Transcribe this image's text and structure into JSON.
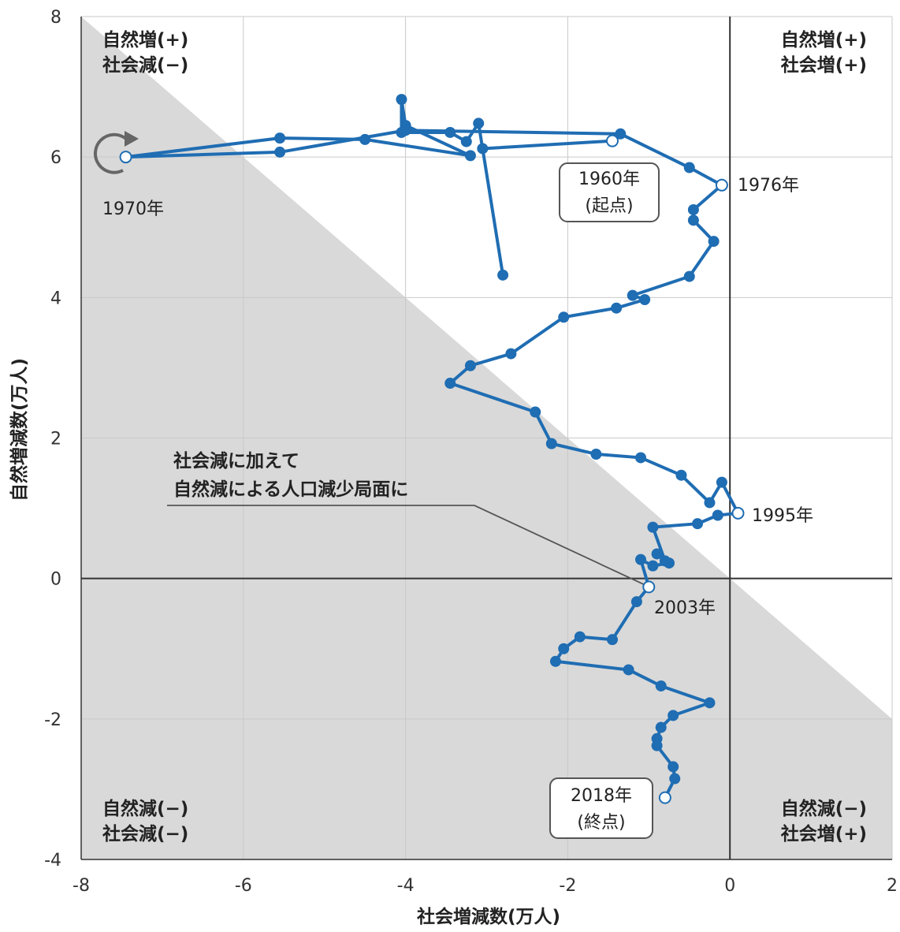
{
  "chart_data": {
    "type": "line",
    "xlabel": "社会増減数(万人)",
    "ylabel": "自然増減数(万人)",
    "xlim": [
      -8,
      2
    ],
    "ylim": [
      -4,
      8
    ],
    "x_ticks": [
      "-8",
      "-6",
      "-4",
      "-2",
      "0",
      "2"
    ],
    "y_ticks": [
      "8",
      "6",
      "4",
      "2",
      "0",
      "-2",
      "-4"
    ],
    "grid": true,
    "shaded_region": "natural + social < 0",
    "line_color": "#1f6db3",
    "shade_color": "#d9d9d9",
    "quadrant_labels": {
      "top_left": [
        "自然増(+)",
        "社会減(−)"
      ],
      "top_right": [
        "自然増(+)",
        "社会増(+)"
      ],
      "bottom_left": [
        "自然減(−)",
        "社会減(−)"
      ],
      "bottom_right": [
        "自然減(−)",
        "社会増(+)"
      ]
    },
    "point_labels": {
      "start": [
        "1960年",
        "(起点)"
      ],
      "y1970": "1970年",
      "y1976": "1976年",
      "y1995": "1995年",
      "y2003": "2003年",
      "end": [
        "2018年",
        "(終点)"
      ]
    },
    "callout": [
      "社会減に加えて",
      "自然減による人口減少局面に"
    ],
    "points": [
      [
        -1.45,
        6.23
      ],
      [
        -3.05,
        6.12
      ],
      [
        -2.8,
        4.32
      ],
      [
        -3.1,
        6.48
      ],
      [
        -3.25,
        6.22
      ],
      [
        -3.45,
        6.35
      ],
      [
        -4.05,
        6.35
      ],
      [
        -4.05,
        6.82
      ],
      [
        -4.0,
        6.45
      ],
      [
        -3.2,
        6.02
      ],
      [
        -4.5,
        6.25
      ],
      [
        -5.55,
        6.27
      ],
      [
        -7.45,
        6.0
      ],
      [
        -5.55,
        6.07
      ],
      [
        -4.0,
        6.38
      ],
      [
        -1.35,
        6.33
      ],
      [
        -0.5,
        5.85
      ],
      [
        -0.1,
        5.6
      ],
      [
        -0.45,
        5.25
      ],
      [
        -0.45,
        5.1
      ],
      [
        -0.2,
        4.8
      ],
      [
        -0.5,
        4.3
      ],
      [
        -1.2,
        4.03
      ],
      [
        -1.05,
        3.97
      ],
      [
        -1.4,
        3.85
      ],
      [
        -2.05,
        3.72
      ],
      [
        -2.7,
        3.2
      ],
      [
        -3.2,
        3.03
      ],
      [
        -3.45,
        2.78
      ],
      [
        -2.4,
        2.37
      ],
      [
        -2.2,
        1.92
      ],
      [
        -1.65,
        1.77
      ],
      [
        -1.1,
        1.72
      ],
      [
        -0.6,
        1.47
      ],
      [
        -0.25,
        1.08
      ],
      [
        -0.1,
        1.37
      ],
      [
        0.1,
        0.93
      ],
      [
        -0.15,
        0.9
      ],
      [
        -0.4,
        0.78
      ],
      [
        -0.95,
        0.73
      ],
      [
        -0.8,
        0.25
      ],
      [
        -0.9,
        0.35
      ],
      [
        -0.75,
        0.22
      ],
      [
        -0.95,
        0.18
      ],
      [
        -1.1,
        0.27
      ],
      [
        -1.0,
        -0.12
      ],
      [
        -1.15,
        -0.33
      ],
      [
        -1.45,
        -0.87
      ],
      [
        -1.85,
        -0.83
      ],
      [
        -2.05,
        -1.0
      ],
      [
        -2.15,
        -1.18
      ],
      [
        -1.25,
        -1.3
      ],
      [
        -0.85,
        -1.53
      ],
      [
        -0.25,
        -1.77
      ],
      [
        -0.7,
        -1.95
      ],
      [
        -0.85,
        -2.12
      ],
      [
        -0.9,
        -2.28
      ],
      [
        -0.9,
        -2.38
      ],
      [
        -0.7,
        -2.68
      ],
      [
        -0.68,
        -2.85
      ],
      [
        -0.8,
        -3.12
      ]
    ],
    "open_point_indices": [
      0,
      12,
      17,
      36,
      45,
      60
    ],
    "callout_anchor": [
      -1.0,
      -0.12
    ]
  }
}
